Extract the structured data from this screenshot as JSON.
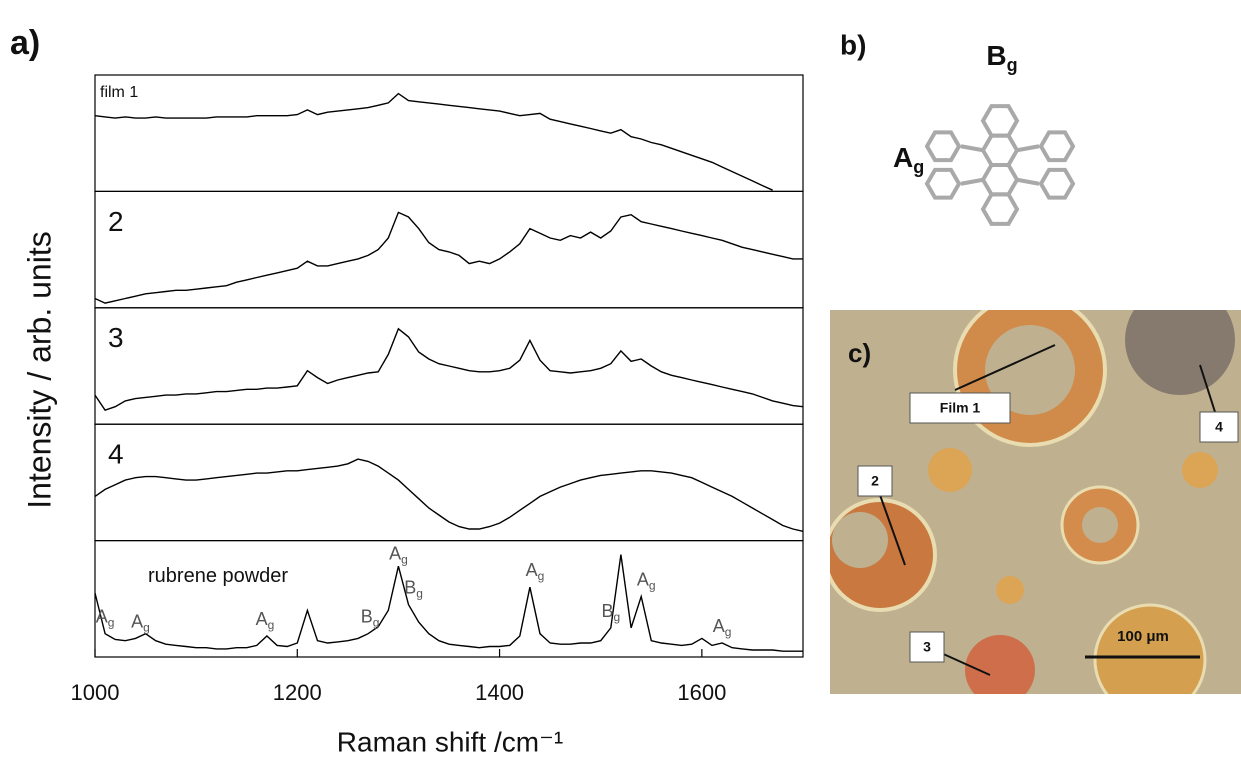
{
  "chart_data": {
    "type": "line",
    "panel_label": "a)",
    "xlabel": "Raman shift /cm⁻¹",
    "ylabel": "Intensity / arb. units",
    "color": "#000000",
    "xlim": [
      1000,
      1700
    ],
    "xticks": [
      1000,
      1200,
      1400,
      1600
    ],
    "ylim": [
      0,
      100
    ],
    "x": [
      1000,
      1010,
      1020,
      1030,
      1040,
      1050,
      1060,
      1070,
      1080,
      1090,
      1100,
      1110,
      1120,
      1130,
      1140,
      1150,
      1160,
      1170,
      1180,
      1190,
      1200,
      1210,
      1220,
      1230,
      1240,
      1250,
      1260,
      1270,
      1280,
      1290,
      1300,
      1310,
      1320,
      1330,
      1340,
      1350,
      1360,
      1370,
      1380,
      1390,
      1400,
      1410,
      1420,
      1430,
      1440,
      1450,
      1460,
      1470,
      1480,
      1490,
      1500,
      1510,
      1520,
      1530,
      1540,
      1550,
      1560,
      1570,
      1580,
      1590,
      1600,
      1610,
      1620,
      1630,
      1640,
      1650,
      1660,
      1670,
      1680,
      1690,
      1700
    ],
    "series": [
      {
        "name": "film 1",
        "values": [
          65,
          64,
          63,
          64,
          63,
          63,
          64,
          63,
          63,
          63,
          63,
          63,
          64,
          64,
          64,
          64,
          65,
          65,
          65,
          65,
          66,
          70,
          66,
          68,
          69,
          70,
          71,
          72,
          74,
          76,
          84,
          78,
          77,
          76,
          75,
          74,
          73,
          72,
          71,
          70,
          69,
          67,
          65,
          66,
          67,
          62,
          60,
          58,
          56,
          54,
          52,
          50,
          53,
          47,
          45,
          42,
          40,
          37,
          34,
          31,
          28,
          25,
          21,
          17,
          13,
          9,
          5,
          1,
          null,
          null,
          null
        ]
      },
      {
        "name": "2",
        "values": [
          8,
          4,
          6,
          8,
          10,
          12,
          13,
          14,
          15,
          15,
          16,
          17,
          18,
          19,
          22,
          24,
          26,
          28,
          30,
          32,
          34,
          40,
          36,
          36,
          38,
          40,
          42,
          45,
          50,
          60,
          82,
          78,
          68,
          56,
          50,
          48,
          45,
          38,
          40,
          38,
          42,
          48,
          55,
          68,
          64,
          60,
          58,
          62,
          60,
          65,
          60,
          66,
          78,
          80,
          74,
          72,
          70,
          68,
          66,
          64,
          62,
          60,
          58,
          55,
          52,
          50,
          48,
          46,
          44,
          42,
          42
        ]
      },
      {
        "name": "3",
        "values": [
          25,
          12,
          15,
          20,
          22,
          23,
          24,
          25,
          25,
          26,
          26,
          27,
          28,
          28,
          29,
          30,
          30,
          31,
          31,
          32,
          33,
          46,
          40,
          35,
          38,
          40,
          42,
          44,
          45,
          60,
          82,
          75,
          62,
          56,
          52,
          50,
          48,
          46,
          45,
          45,
          46,
          48,
          55,
          72,
          55,
          46,
          45,
          44,
          45,
          46,
          48,
          52,
          63,
          54,
          56,
          50,
          45,
          42,
          40,
          38,
          36,
          34,
          32,
          30,
          28,
          26,
          23,
          20,
          18,
          16,
          15
        ]
      },
      {
        "name": "4",
        "values": [
          38,
          44,
          48,
          52,
          54,
          55,
          55,
          54,
          53,
          52,
          52,
          53,
          54,
          55,
          56,
          57,
          58,
          58,
          59,
          60,
          60,
          61,
          62,
          63,
          64,
          66,
          70,
          68,
          64,
          58,
          52,
          44,
          36,
          28,
          22,
          16,
          12,
          10,
          10,
          12,
          15,
          20,
          26,
          32,
          38,
          42,
          46,
          49,
          52,
          54,
          56,
          57,
          58,
          59,
          60,
          60,
          59,
          58,
          56,
          54,
          50,
          46,
          42,
          38,
          33,
          28,
          23,
          18,
          13,
          10,
          8
        ]
      },
      {
        "name": "rubrene powder",
        "values": [
          55,
          20,
          15,
          14,
          16,
          20,
          14,
          11,
          10,
          9,
          8,
          8,
          7,
          7,
          8,
          8,
          10,
          18,
          10,
          9,
          12,
          40,
          14,
          12,
          13,
          14,
          16,
          20,
          26,
          40,
          78,
          45,
          30,
          20,
          14,
          11,
          10,
          9,
          8,
          9,
          9,
          10,
          18,
          60,
          20,
          12,
          11,
          11,
          12,
          12,
          14,
          25,
          88,
          25,
          52,
          14,
          12,
          11,
          10,
          11,
          16,
          10,
          12,
          8,
          7,
          6,
          6,
          6,
          5,
          5,
          5
        ],
        "annotations": [
          {
            "text": "A",
            "sub": "g",
            "x": 1010
          },
          {
            "text": "A",
            "sub": "g",
            "x": 1045
          },
          {
            "text": "A",
            "sub": "g",
            "x": 1168
          },
          {
            "text": "B",
            "sub": "g",
            "x": 1272
          },
          {
            "text": "A",
            "sub": "g",
            "x": 1300
          },
          {
            "text": "B",
            "sub": "g",
            "x": 1315
          },
          {
            "text": "A",
            "sub": "g",
            "x": 1435
          },
          {
            "text": "B",
            "sub": "g",
            "x": 1510
          },
          {
            "text": "A",
            "sub": "g",
            "x": 1545
          },
          {
            "text": "A",
            "sub": "g",
            "x": 1620
          }
        ]
      }
    ]
  },
  "panel_b": {
    "label": "b)",
    "modes": [
      {
        "text": "B",
        "sub": "g"
      },
      {
        "text": "A",
        "sub": "g"
      }
    ]
  },
  "panel_c": {
    "label": "c)",
    "markers": [
      "Film 1",
      "2",
      "3",
      "4"
    ],
    "scale_bar": "100 μm"
  }
}
